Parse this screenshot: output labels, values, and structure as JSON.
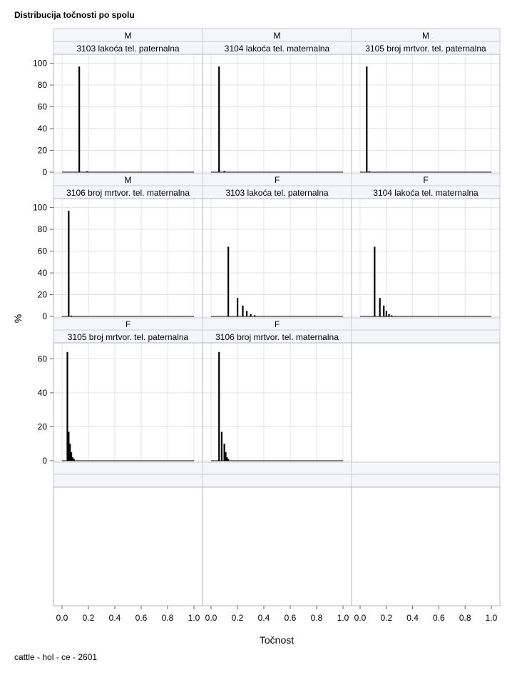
{
  "title": "Distribucija točnosti po spolu",
  "footnote": "cattle - hol - ce - 2601",
  "chart_data": {
    "type": "bar",
    "xlabel": "Točnost",
    "ylabel": "%",
    "xlim": [
      0,
      1
    ],
    "xticks": [
      "0.0",
      "0.2",
      "0.4",
      "0.6",
      "0.8",
      "1.0"
    ],
    "grid": true,
    "panels": [
      {
        "sex": "M",
        "trait": "3103 lakoća tel. paternalna",
        "yticks": [
          0,
          20,
          40,
          60,
          80,
          100
        ],
        "ylim": [
          0,
          103
        ],
        "bars": [
          {
            "x": 0.13,
            "y": 97
          },
          {
            "x": 0.19,
            "y": 0.8
          },
          {
            "x": 0.23,
            "y": 0.3
          },
          {
            "x": 0.27,
            "y": 0.2
          }
        ]
      },
      {
        "sex": "M",
        "trait": "3104 lakoća tel. maternalna",
        "yticks": [
          0,
          20,
          40,
          60,
          80,
          100
        ],
        "ylim": [
          0,
          103
        ],
        "bars": [
          {
            "x": 0.06,
            "y": 97
          },
          {
            "x": 0.1,
            "y": 1
          },
          {
            "x": 0.14,
            "y": 0.3
          }
        ]
      },
      {
        "sex": "M",
        "trait": "3105 broj mrtvor. tel. paternalna",
        "yticks": [
          0,
          20,
          40,
          60,
          80,
          100
        ],
        "ylim": [
          0,
          103
        ],
        "bars": [
          {
            "x": 0.05,
            "y": 97
          },
          {
            "x": 0.07,
            "y": 0.8
          }
        ]
      },
      {
        "sex": "M",
        "trait": "3106 broj mrtvor. tel. maternalna",
        "yticks": [
          0,
          20,
          40,
          60,
          80,
          100
        ],
        "ylim": [
          0,
          103
        ],
        "bars": [
          {
            "x": 0.05,
            "y": 97
          },
          {
            "x": 0.07,
            "y": 0.8
          }
        ]
      },
      {
        "sex": "F",
        "trait": "3103 lakoća tel. paternalna",
        "yticks": [
          0,
          20,
          40,
          60,
          80,
          100
        ],
        "ylim": [
          0,
          103
        ],
        "bars": [
          {
            "x": 0.13,
            "y": 64
          },
          {
            "x": 0.2,
            "y": 17
          },
          {
            "x": 0.24,
            "y": 10
          },
          {
            "x": 0.27,
            "y": 5
          },
          {
            "x": 0.3,
            "y": 2
          },
          {
            "x": 0.33,
            "y": 1
          }
        ]
      },
      {
        "sex": "F",
        "trait": "3104 lakoća tel. maternalna",
        "yticks": [
          0,
          20,
          40,
          60,
          80,
          100
        ],
        "ylim": [
          0,
          103
        ],
        "bars": [
          {
            "x": 0.11,
            "y": 64
          },
          {
            "x": 0.15,
            "y": 17
          },
          {
            "x": 0.18,
            "y": 10
          },
          {
            "x": 0.2,
            "y": 5
          },
          {
            "x": 0.22,
            "y": 2
          },
          {
            "x": 0.24,
            "y": 1
          }
        ]
      },
      {
        "sex": "F",
        "trait": "3105 broj mrtvor. tel. paternalna",
        "yticks": [
          0,
          20,
          40,
          60
        ],
        "ylim": [
          0,
          66
        ],
        "bars": [
          {
            "x": 0.04,
            "y": 64
          },
          {
            "x": 0.05,
            "y": 17
          },
          {
            "x": 0.06,
            "y": 10
          },
          {
            "x": 0.07,
            "y": 5
          },
          {
            "x": 0.08,
            "y": 2
          },
          {
            "x": 0.09,
            "y": 1
          }
        ]
      },
      {
        "sex": "F",
        "trait": "3106 broj mrtvor. tel. maternalna",
        "yticks": [
          0,
          20,
          40,
          60
        ],
        "ylim": [
          0,
          66
        ],
        "bars": [
          {
            "x": 0.06,
            "y": 64
          },
          {
            "x": 0.08,
            "y": 17
          },
          {
            "x": 0.1,
            "y": 10
          },
          {
            "x": 0.11,
            "y": 5
          },
          {
            "x": 0.12,
            "y": 2
          },
          {
            "x": 0.13,
            "y": 1
          }
        ]
      }
    ]
  }
}
